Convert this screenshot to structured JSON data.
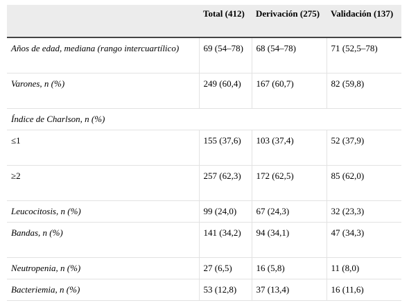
{
  "table": {
    "headers": [
      "",
      "Total (412)",
      "Derivación (275)",
      "Validación (137)"
    ],
    "rows": [
      {
        "label": "Años de edad, mediana (rango intercuartílico)",
        "total": "69 (54–78)",
        "derivacion": "68 (54–78)",
        "validacion": "71 (52,5–78)"
      },
      {
        "label": "Varones, n (%)",
        "total": "249 (60,4)",
        "derivacion": "167 (60,7)",
        "validacion": "82 (59,8)"
      },
      {
        "section": "Índice de Charlson, n (%)"
      },
      {
        "label": "≤1",
        "total": "155 (37,6)",
        "derivacion": "103 (37,4)",
        "validacion": "52 (37,9)"
      },
      {
        "label": "≥2",
        "total": "257 (62,3)",
        "derivacion": "172 (62,5)",
        "validacion": "85 (62,0)"
      },
      {
        "label": "Leucocitosis, n (%)",
        "total": "99 (24,0)",
        "derivacion": "67 (24,3)",
        "validacion": "32 (23,3)"
      },
      {
        "label": "Bandas, n (%)",
        "total": "141 (34,2)",
        "derivacion": "94 (34,1)",
        "validacion": "47 (34,3)"
      },
      {
        "label": "Neutropenia, n (%)",
        "total": "27 (6,5)",
        "derivacion": "16 (5,8)",
        "validacion": "11 (8,0)"
      },
      {
        "label": "Bacteriemia, n (%)",
        "total": "53 (12,8)",
        "derivacion": "37 (13,4)",
        "validacion": "16 (11,6)"
      }
    ]
  }
}
